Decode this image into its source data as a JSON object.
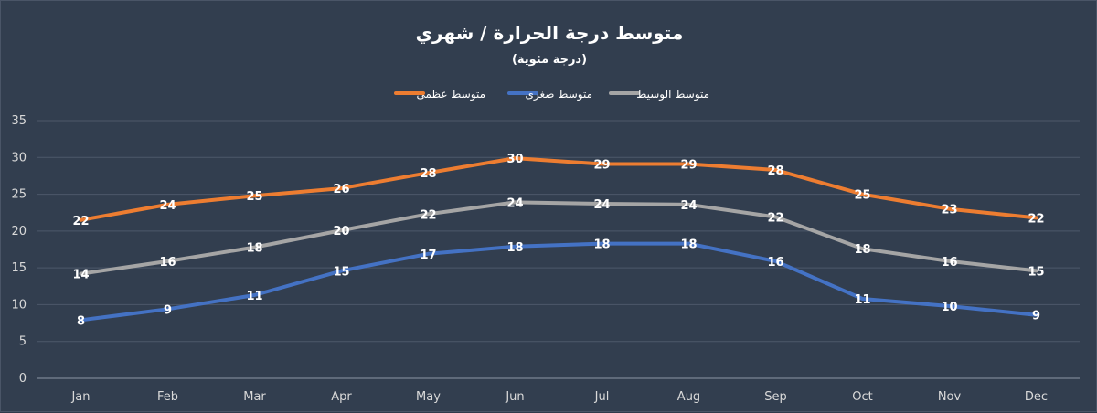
{
  "chart_data": {
    "type": "line",
    "title": "متوسط درجة الحرارة / شهري",
    "subtitle": "(درجة مئوية)",
    "xlabel": "",
    "ylabel": "",
    "ylim": [
      0,
      35
    ],
    "yticks": [
      0,
      5,
      10,
      15,
      20,
      25,
      30,
      35
    ],
    "grid": true,
    "legend_position": "top",
    "categories": [
      "Jan",
      "Feb",
      "Mar",
      "Apr",
      "May",
      "Jun",
      "Jul",
      "Aug",
      "Sep",
      "Oct",
      "Nov",
      "Dec"
    ],
    "series": [
      {
        "name": "متوسط عظمى",
        "color": "#ed7d31",
        "values": [
          21.5,
          23.6,
          24.8,
          25.8,
          27.9,
          29.9,
          29.1,
          29.1,
          28.3,
          25.0,
          23.0,
          21.8
        ],
        "labels": [
          "22",
          "24",
          "25",
          "26",
          "28",
          "30",
          "29",
          "29",
          "28",
          "25",
          "23",
          "22"
        ]
      },
      {
        "name": "متوسط صغرى",
        "color": "#4472c4",
        "values": [
          7.9,
          9.4,
          11.3,
          14.6,
          16.9,
          17.9,
          18.3,
          18.3,
          15.9,
          10.8,
          9.8,
          8.6
        ],
        "labels": [
          "8",
          "9",
          "11",
          "15",
          "17",
          "18",
          "18",
          "18",
          "16",
          "11",
          "10",
          "9"
        ]
      },
      {
        "name": "متوسط الوسيط",
        "color": "#a5a5a5",
        "values": [
          14.2,
          15.9,
          17.8,
          20.1,
          22.3,
          23.9,
          23.7,
          23.6,
          21.9,
          17.6,
          15.9,
          14.6
        ],
        "labels": [
          "14",
          "16",
          "18",
          "20",
          "22",
          "24",
          "24",
          "24",
          "22",
          "18",
          "16",
          "15"
        ]
      }
    ]
  }
}
